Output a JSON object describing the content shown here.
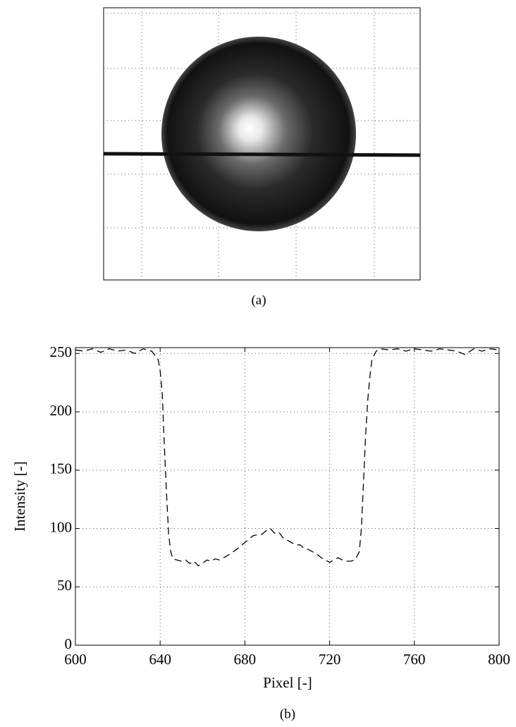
{
  "panel_a": {
    "caption": "(a)"
  },
  "chart_data": {
    "type": "line",
    "caption": "(b)",
    "x_label": "Pixel [-]",
    "y_label": "Intensity [-]",
    "x": [
      600,
      604,
      608,
      612,
      616,
      620,
      624,
      628,
      632,
      636,
      639,
      640,
      641,
      642,
      643,
      644,
      645,
      646,
      648,
      650,
      652,
      654,
      656,
      658,
      660,
      662,
      664,
      666,
      668,
      670,
      672,
      676,
      680,
      684,
      688,
      690,
      692,
      694,
      696,
      698,
      700,
      702,
      704,
      706,
      708,
      710,
      712,
      714,
      716,
      718,
      720,
      722,
      724,
      726,
      728,
      730,
      732,
      734,
      735,
      736,
      737,
      738,
      739,
      740,
      742,
      744,
      748,
      752,
      756,
      760,
      764,
      768,
      772,
      776,
      780,
      784,
      788,
      792,
      796,
      800
    ],
    "values": [
      253,
      252,
      254,
      251,
      254,
      252,
      253,
      250,
      254,
      252,
      245,
      235,
      215,
      170,
      130,
      95,
      80,
      74,
      73,
      72,
      73,
      70,
      72,
      68,
      70,
      73,
      72,
      74,
      73,
      75,
      77,
      82,
      88,
      94,
      95,
      98,
      100,
      96,
      97,
      92,
      90,
      88,
      86,
      86,
      83,
      82,
      80,
      78,
      75,
      73,
      71,
      73,
      75,
      73,
      72,
      72,
      73,
      80,
      100,
      140,
      180,
      210,
      230,
      245,
      252,
      254,
      253,
      254,
      252,
      254,
      253,
      252,
      254,
      253,
      252,
      249,
      254,
      252,
      254,
      253
    ],
    "color": "#000000",
    "line_style": "dashed",
    "xlim": [
      600,
      800
    ],
    "xticks": [
      600,
      640,
      680,
      720,
      760,
      800
    ],
    "ylim": [
      0,
      255
    ],
    "yticks": [
      0,
      50,
      100,
      150,
      200,
      250
    ],
    "grid": true
  }
}
